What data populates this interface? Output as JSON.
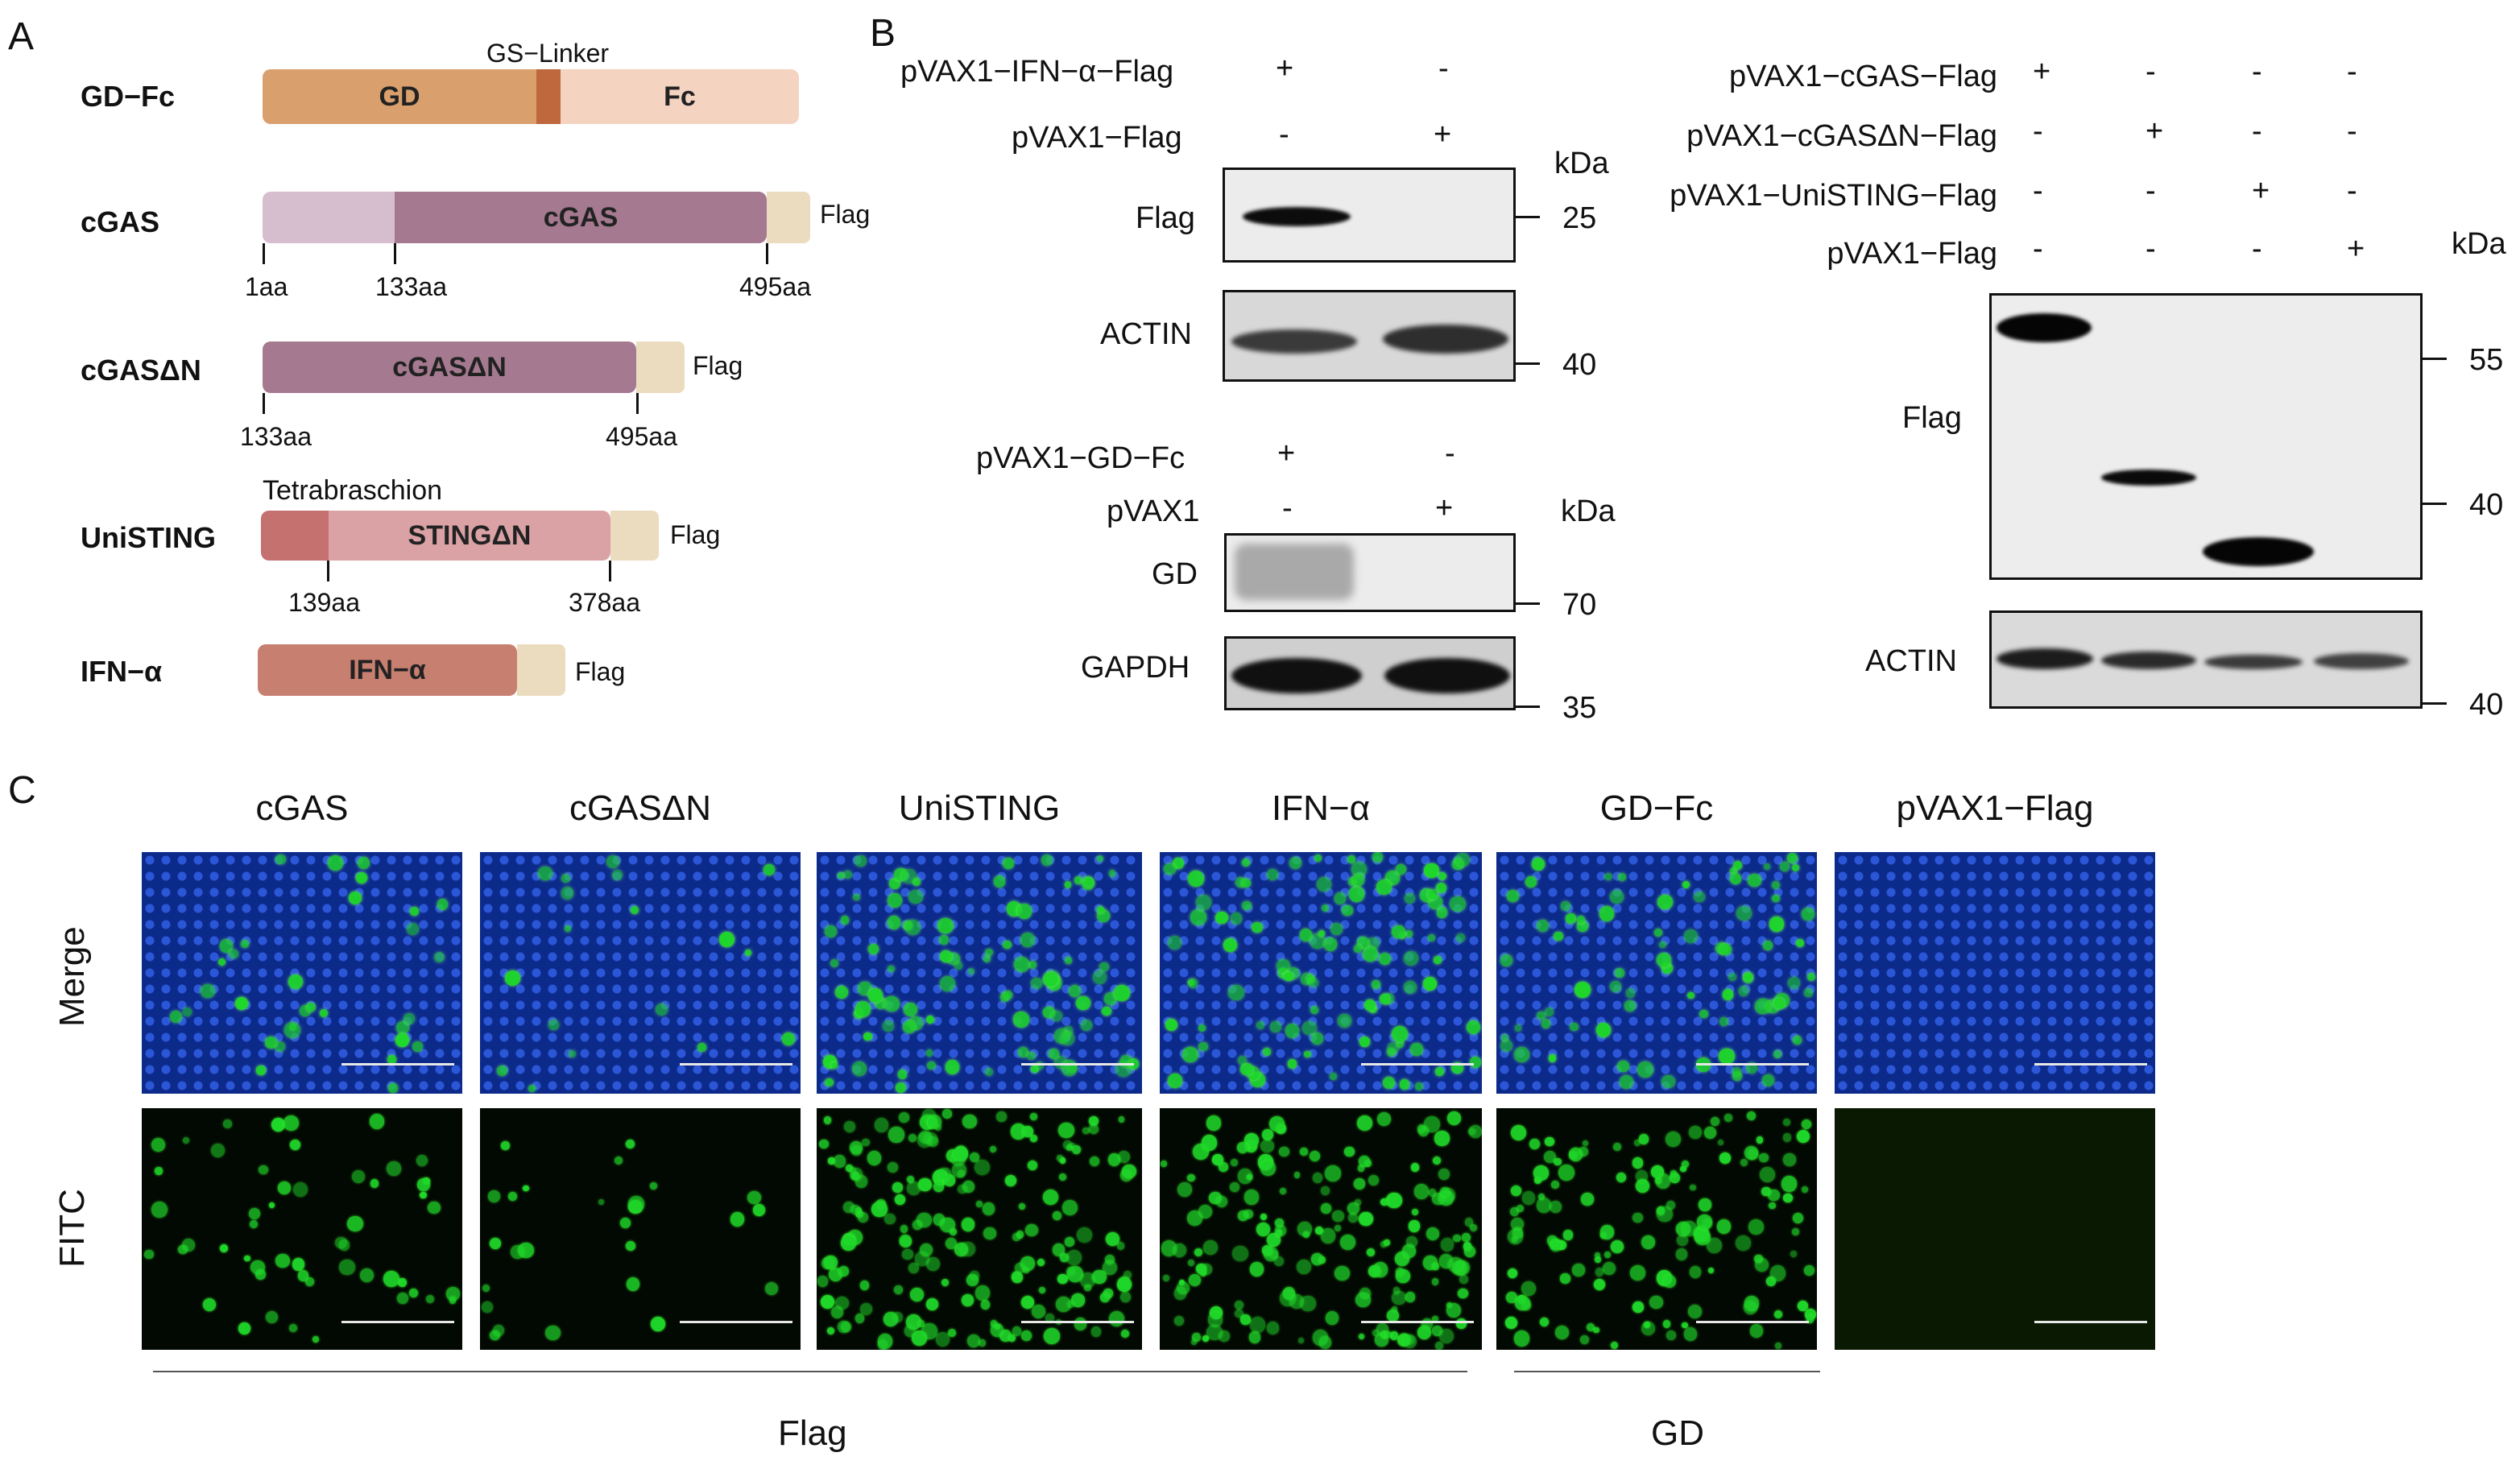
{
  "panels": {
    "a": "A",
    "b": "B",
    "c": "C"
  },
  "constructs": {
    "gdfc": {
      "name": "GD−Fc",
      "linker_label": "GS−Linker",
      "domain_gd": "GD",
      "domain_fc": "Fc"
    },
    "cgas": {
      "name": "cGAS",
      "domain": "cGAS",
      "tag": "Flag",
      "pos1": "1aa",
      "pos2": "133aa",
      "pos3": "495aa"
    },
    "cgasdn": {
      "name": "cGASΔN",
      "domain": "cGASΔN",
      "tag": "Flag",
      "pos1": "133aa",
      "pos2": "495aa"
    },
    "unisting": {
      "name": "UniSTING",
      "motif_label": "Tetrabraschion",
      "domain": "STINGΔN",
      "tag": "Flag",
      "pos1": "139aa",
      "pos2": "378aa"
    },
    "ifna": {
      "name": "IFN−α",
      "domain": "IFN−α",
      "tag": "Flag"
    }
  },
  "western_left_top": {
    "row1_label": "pVAX1−IFN−α−Flag",
    "row1_l1": "+",
    "row1_l2": "-",
    "row2_label": "pVAX1−Flag",
    "row2_l1": "-",
    "row2_l2": "+",
    "kda": "kDa",
    "blot1_label": "Flag",
    "blot1_marker": "25",
    "blot2_label": "ACTIN",
    "blot2_marker": "40"
  },
  "western_left_bottom": {
    "row1_label": "pVAX1−GD−Fc",
    "row1_l1": "+",
    "row1_l2": "-",
    "row2_label": "pVAX1",
    "row2_l1": "-",
    "row2_l2": "+",
    "kda": "kDa",
    "blot1_label": "GD",
    "blot1_marker": "70",
    "blot2_label": "GAPDH",
    "blot2_marker": "35"
  },
  "western_right": {
    "rows": [
      {
        "label": "pVAX1−cGAS−Flag",
        "signs": [
          "+",
          "-",
          "-",
          "-"
        ]
      },
      {
        "label": "pVAX1−cGASΔN−Flag",
        "signs": [
          "-",
          "+",
          "-",
          "-"
        ]
      },
      {
        "label": "pVAX1−UniSTING−Flag",
        "signs": [
          "-",
          "-",
          "+",
          "-"
        ]
      },
      {
        "label": "pVAX1−Flag",
        "signs": [
          "-",
          "-",
          "-",
          "+"
        ]
      }
    ],
    "kda": "kDa",
    "blot1_label": "Flag",
    "marker_55": "55",
    "marker_40a": "40",
    "blot2_label": "ACTIN",
    "marker_40b": "40"
  },
  "microscopy": {
    "columns": [
      "cGAS",
      "cGASΔN",
      "UniSTING",
      "IFN−α",
      "GD−Fc",
      "pVAX1−Flag"
    ],
    "row_merge": "Merge",
    "row_fitc": "FITC",
    "group_flag": "Flag",
    "group_gd": "GD",
    "merge_density": [
      0.18,
      0.1,
      0.55,
      0.6,
      0.45,
      0.0
    ],
    "fitc_density": [
      0.2,
      0.1,
      0.75,
      0.7,
      0.55,
      0.0
    ]
  },
  "colors": {
    "gd": "#d9a06e",
    "linker": "#c0683d",
    "fc": "#f4d3c0",
    "cgas_n": "#d6bece",
    "cgas": "#a5798f",
    "flag": "#ecdcbf",
    "sting_motif": "#c4716f",
    "sting": "#dba2a6",
    "ifna": "#c77f70",
    "dapi": "#1a3aa8",
    "fitc": "#1fd82a"
  }
}
